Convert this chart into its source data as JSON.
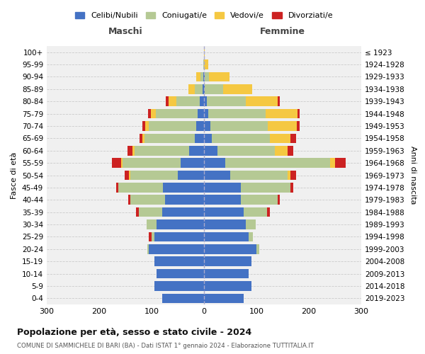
{
  "age_groups": [
    "0-4",
    "5-9",
    "10-14",
    "15-19",
    "20-24",
    "25-29",
    "30-34",
    "35-39",
    "40-44",
    "45-49",
    "50-54",
    "55-59",
    "60-64",
    "65-69",
    "70-74",
    "75-79",
    "80-84",
    "85-89",
    "90-94",
    "95-99",
    "100+"
  ],
  "birth_years": [
    "2019-2023",
    "2014-2018",
    "2009-2013",
    "2004-2008",
    "1999-2003",
    "1994-1998",
    "1989-1993",
    "1984-1988",
    "1979-1983",
    "1974-1978",
    "1969-1973",
    "1964-1968",
    "1959-1963",
    "1954-1958",
    "1949-1953",
    "1944-1948",
    "1939-1943",
    "1934-1938",
    "1929-1933",
    "1924-1928",
    "≤ 1923"
  ],
  "colors": {
    "celibi": "#4472c4",
    "coniugati": "#b5c994",
    "vedovi": "#f5c842",
    "divorziati": "#cc2222"
  },
  "maschi": {
    "celibi": [
      80,
      95,
      90,
      95,
      105,
      95,
      90,
      80,
      75,
      78,
      50,
      45,
      28,
      18,
      15,
      12,
      8,
      3,
      1,
      0,
      0
    ],
    "coniugati": [
      0,
      0,
      0,
      0,
      3,
      5,
      20,
      45,
      65,
      85,
      90,
      110,
      105,
      95,
      90,
      80,
      45,
      15,
      6,
      1,
      0
    ],
    "vedovi": [
      0,
      0,
      0,
      0,
      0,
      0,
      0,
      0,
      0,
      0,
      3,
      3,
      3,
      5,
      7,
      10,
      15,
      12,
      8,
      0,
      0
    ],
    "divorziati": [
      0,
      0,
      0,
      0,
      0,
      5,
      0,
      5,
      5,
      5,
      8,
      18,
      10,
      5,
      5,
      5,
      5,
      0,
      0,
      0,
      0
    ]
  },
  "femmine": {
    "celibi": [
      75,
      90,
      85,
      90,
      100,
      85,
      80,
      75,
      70,
      70,
      50,
      40,
      25,
      15,
      12,
      8,
      5,
      2,
      1,
      0,
      0
    ],
    "coniugati": [
      0,
      0,
      0,
      0,
      5,
      8,
      18,
      45,
      70,
      95,
      110,
      200,
      110,
      110,
      110,
      110,
      75,
      35,
      8,
      0,
      0
    ],
    "vedovi": [
      0,
      0,
      0,
      0,
      0,
      0,
      0,
      0,
      0,
      0,
      5,
      10,
      25,
      40,
      55,
      60,
      60,
      55,
      40,
      8,
      2
    ],
    "divorziati": [
      0,
      0,
      0,
      0,
      0,
      0,
      0,
      5,
      5,
      5,
      10,
      20,
      10,
      10,
      5,
      5,
      5,
      0,
      0,
      0,
      0
    ]
  },
  "title": "Popolazione per età, sesso e stato civile - 2024",
  "subtitle": "COMUNE DI SAMMICHELE DI BARI (BA) - Dati ISTAT 1° gennaio 2024 - Elaborazione TUTTITALIA.IT",
  "xlabel_left": "Maschi",
  "xlabel_right": "Femmine",
  "ylabel_left": "Fasce di età",
  "ylabel_right": "Anni di nascita",
  "xlim": 300,
  "legend_labels": [
    "Celibi/Nubili",
    "Coniugati/e",
    "Vedovi/e",
    "Divorziati/e"
  ],
  "bg_color": "#f0f0f0"
}
